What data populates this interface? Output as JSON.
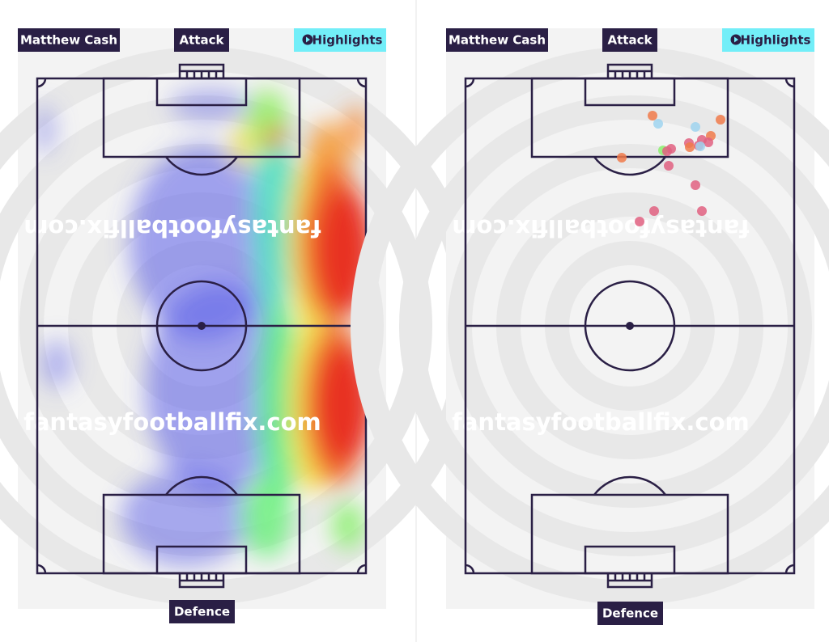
{
  "panels": [
    {
      "player": "Matthew Cash",
      "top_label": "Attack",
      "button": "Highlights",
      "bottom_label": "Defence",
      "watermarks": [
        "fantasyfootballfix.com",
        "fantasyfootballfix.com"
      ]
    },
    {
      "player": "Matthew Cash",
      "top_label": "Attack",
      "button": "Highlights",
      "bottom_label": "Defence",
      "watermarks": [
        "fantasyfootballfix.com",
        "fantasyfootballfix.com"
      ]
    }
  ]
}
